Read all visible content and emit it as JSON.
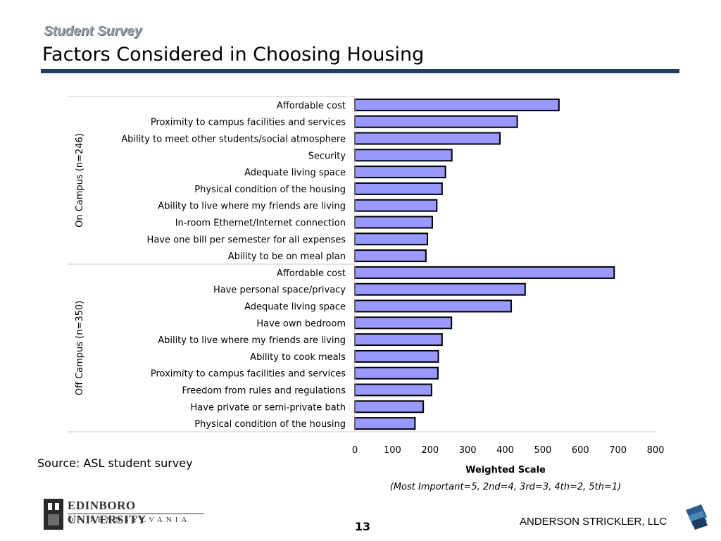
{
  "header": {
    "subtitle": "Student Survey",
    "title": "Factors Considered in Choosing Housing"
  },
  "chart_data": {
    "type": "bar",
    "orientation": "horizontal",
    "bar_color": "#9999ff",
    "bar_border": "#000000",
    "xlim": [
      0,
      800
    ],
    "xticks": [
      0,
      100,
      200,
      300,
      400,
      500,
      600,
      700,
      800
    ],
    "xlabel": "Weighted Scale",
    "xlabel_note": "(Most Important=5, 2nd=4, 3rd=3, 4th=2, 5th=1)",
    "groups": [
      {
        "label": "On Campus (n=246)",
        "categories": [
          "Affordable cost",
          "Proximity to campus facilities and services",
          "Ability to meet other students/social atmosphere",
          "Security",
          "Adequate living space",
          "Physical condition of the housing",
          "Ability to live where my friends are living",
          "In-room Ethernet/Internet connection",
          "Have one bill per semester for all expenses",
          "Ability to be on meal plan"
        ],
        "values": [
          543,
          432,
          386,
          258,
          241,
          232,
          218,
          206,
          193,
          189
        ]
      },
      {
        "label": "Off Campus (n=350)",
        "categories": [
          "Affordable cost",
          "Have personal space/privacy",
          "Adequate living space",
          "Have own bedroom",
          "Ability to live where my friends are living",
          "Ability to cook meals",
          "Proximity to campus facilities and services",
          "Freedom from rules and regulations",
          "Have private or semi-private bath",
          "Physical condition of the housing"
        ],
        "values": [
          690,
          453,
          416,
          257,
          232,
          222,
          221,
          204,
          182,
          160
        ]
      }
    ]
  },
  "footer": {
    "source": "Source: ASL student survey",
    "page_number": "13",
    "firm": "ANDERSON STRICKLER, LLC",
    "university_name": "EDINBORO UNIVERSITY",
    "university_sub": "OF PENNSYLVANIA"
  }
}
